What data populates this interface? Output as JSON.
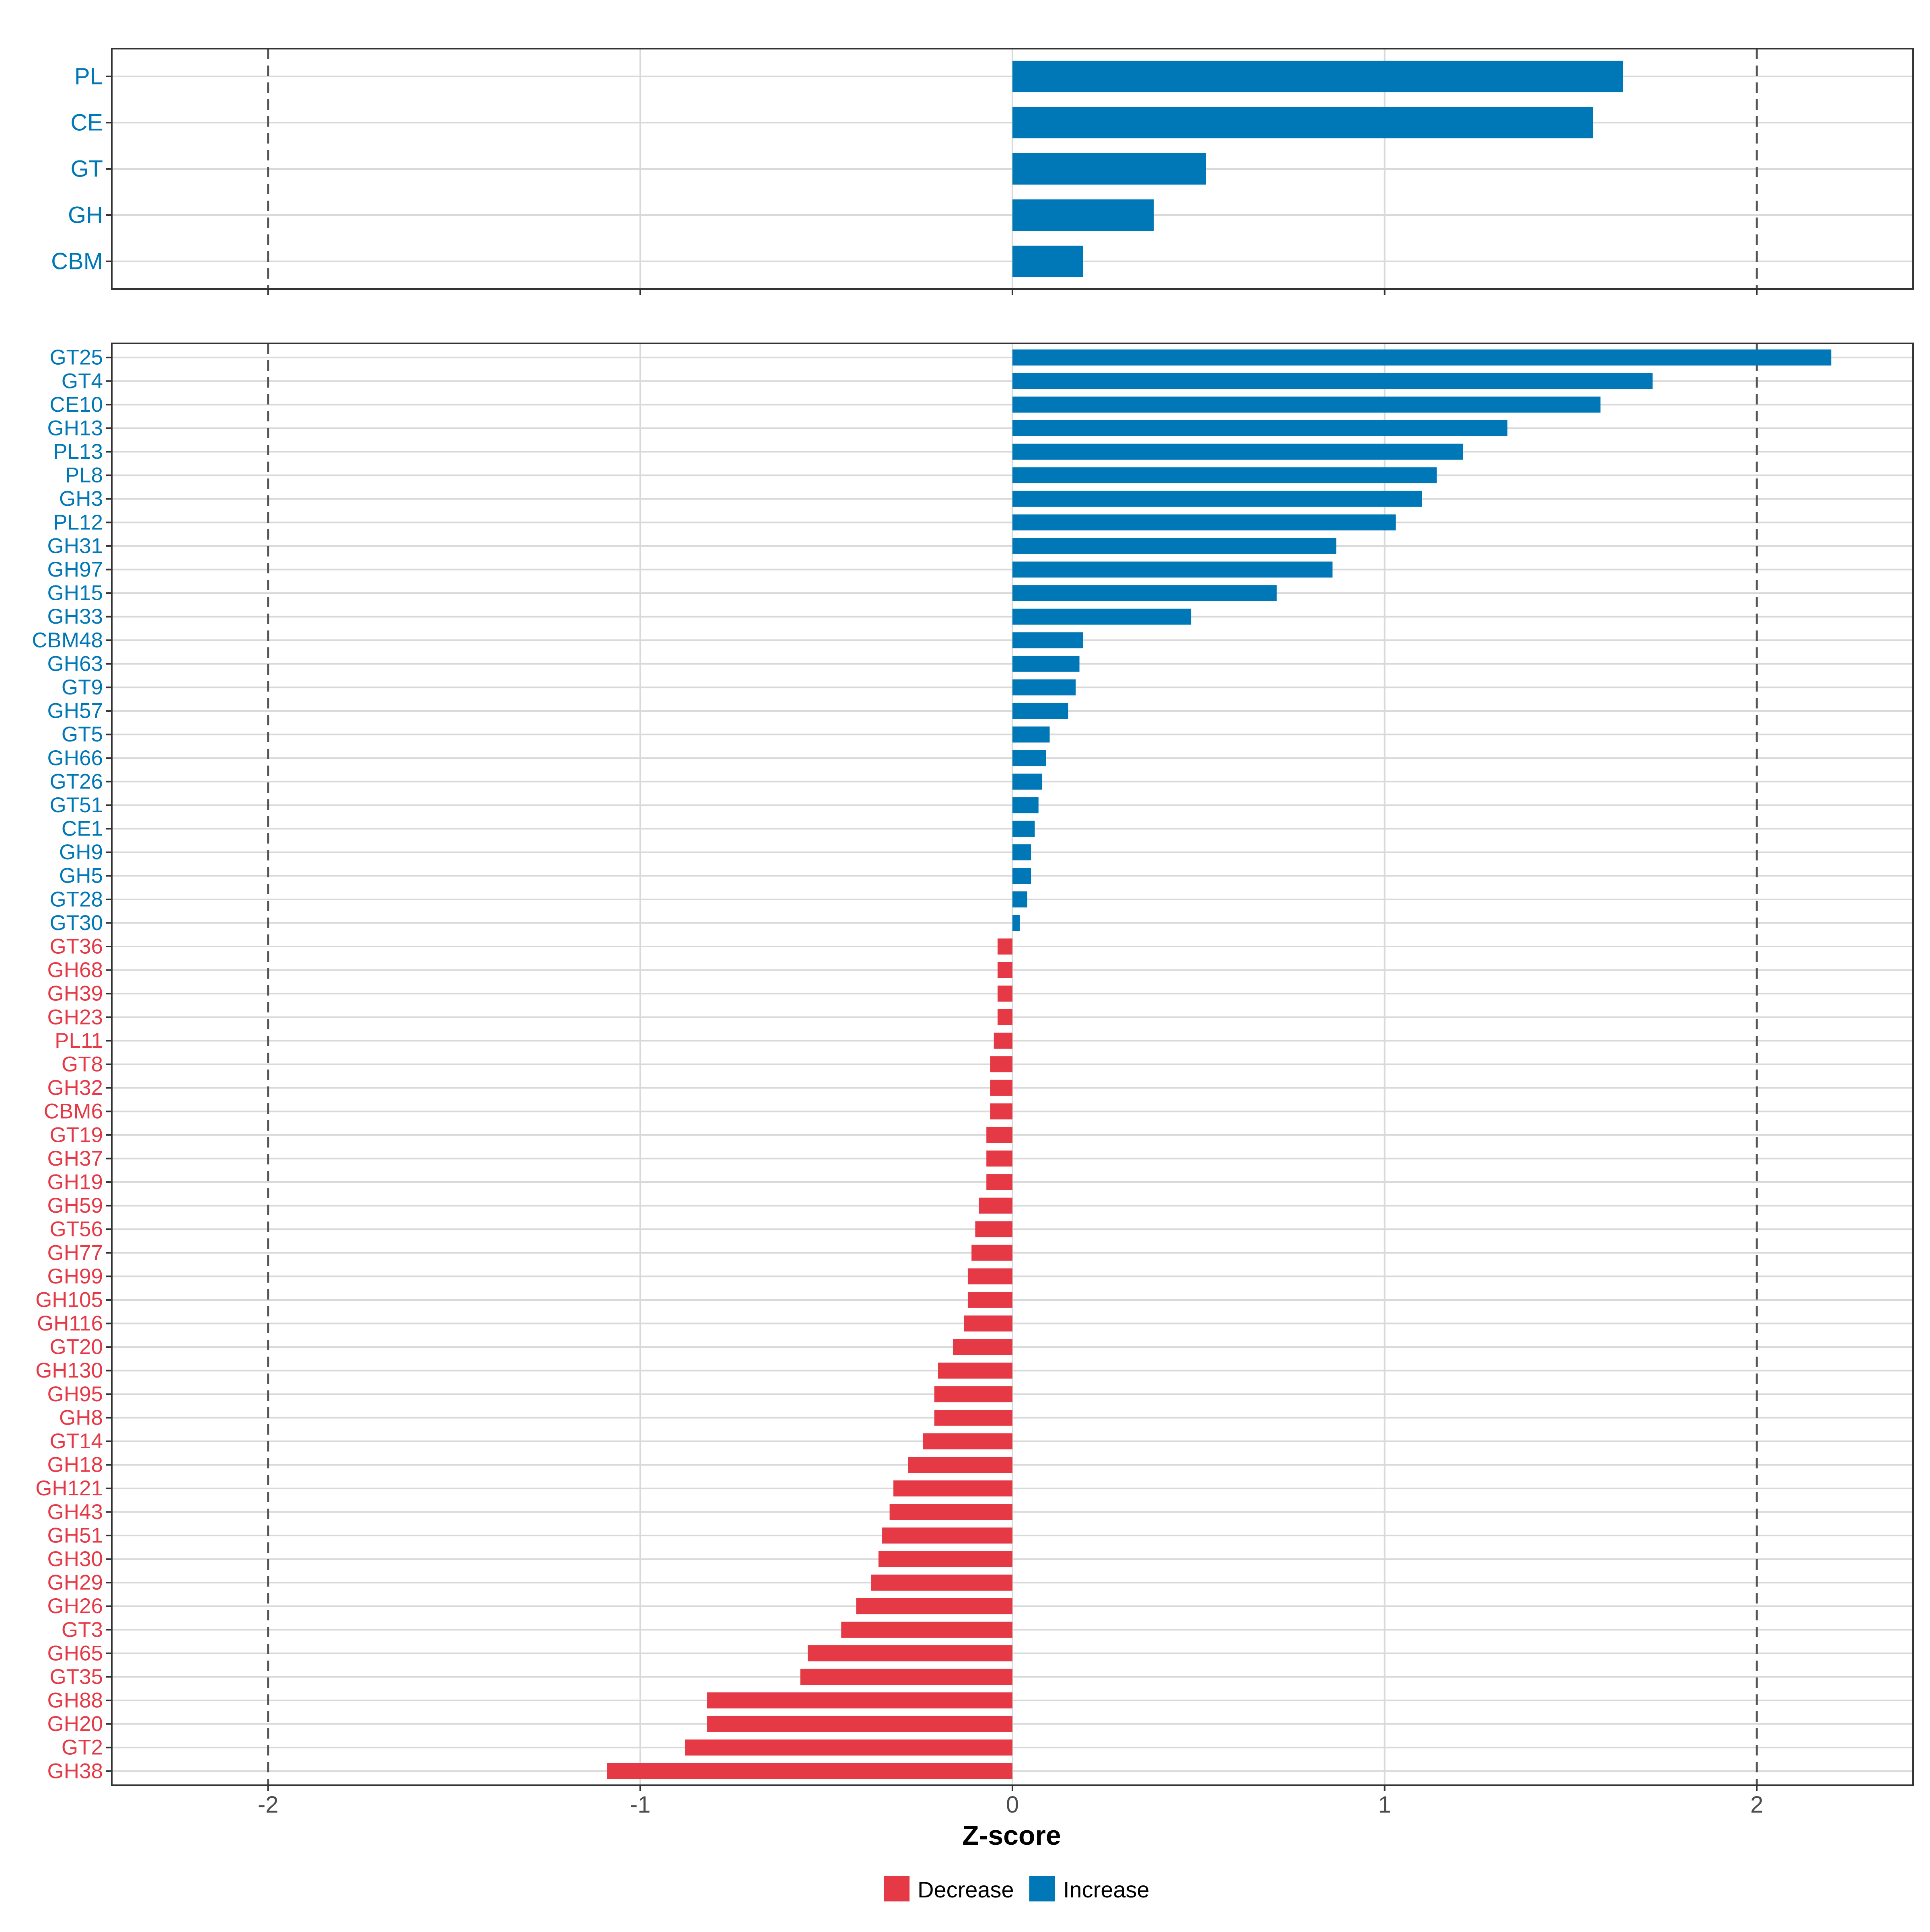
{
  "colors": {
    "increase": "#0077B6",
    "decrease": "#E63946",
    "grid": "#D9D9D9",
    "ref_line": "#555555",
    "axis_text": "#4D4D4D",
    "panel_border": "#333333"
  },
  "legend": {
    "items": [
      {
        "label": "Decrease",
        "color": "#E63946"
      },
      {
        "label": "Increase",
        "color": "#0077B6"
      }
    ]
  },
  "chart_data": [
    {
      "type": "bar",
      "orientation": "horizontal",
      "panel": "class-level",
      "categories": [
        "PL",
        "CE",
        "GT",
        "GH",
        "CBM"
      ],
      "values": [
        1.64,
        1.56,
        0.52,
        0.38,
        0.19
      ],
      "xlim": [
        -2.42,
        2.42
      ],
      "xticks": [
        -2,
        -1,
        0,
        1,
        2
      ],
      "reference_lines": [
        -2,
        2
      ],
      "grid": true
    },
    {
      "type": "bar",
      "orientation": "horizontal",
      "panel": "family-level",
      "categories": [
        "GT25",
        "GT4",
        "CE10",
        "GH13",
        "PL13",
        "PL8",
        "GH3",
        "PL12",
        "GH31",
        "GH97",
        "GH15",
        "GH33",
        "CBM48",
        "GH63",
        "GT9",
        "GH57",
        "GT5",
        "GH66",
        "GT26",
        "GT51",
        "CE1",
        "GH9",
        "GH5",
        "GT28",
        "GT30",
        "GT36",
        "GH68",
        "GH39",
        "GH23",
        "PL11",
        "GT8",
        "GH32",
        "CBM6",
        "GT19",
        "GH37",
        "GH19",
        "GH59",
        "GT56",
        "GH77",
        "GH99",
        "GH105",
        "GH116",
        "GT20",
        "GH130",
        "GH95",
        "GH8",
        "GT14",
        "GH18",
        "GH121",
        "GH43",
        "GH51",
        "GH30",
        "GH29",
        "GH26",
        "GT3",
        "GH65",
        "GT35",
        "GH88",
        "GH20",
        "GT2",
        "GH38"
      ],
      "values": [
        2.2,
        1.72,
        1.58,
        1.33,
        1.21,
        1.14,
        1.1,
        1.03,
        0.87,
        0.86,
        0.71,
        0.48,
        0.19,
        0.18,
        0.17,
        0.15,
        0.1,
        0.09,
        0.08,
        0.07,
        0.06,
        0.05,
        0.05,
        0.04,
        0.02,
        -0.04,
        -0.04,
        -0.04,
        -0.04,
        -0.05,
        -0.06,
        -0.06,
        -0.06,
        -0.07,
        -0.07,
        -0.07,
        -0.09,
        -0.1,
        -0.11,
        -0.12,
        -0.12,
        -0.13,
        -0.16,
        -0.2,
        -0.21,
        -0.21,
        -0.24,
        -0.28,
        -0.32,
        -0.33,
        -0.35,
        -0.36,
        -0.38,
        -0.42,
        -0.46,
        -0.55,
        -0.57,
        -0.82,
        -0.82,
        -0.88,
        -1.09
      ],
      "xlim": [
        -2.42,
        2.42
      ],
      "xticks": [
        -2,
        -1,
        0,
        1,
        2
      ],
      "xtick_labels": [
        "-2",
        "-1",
        "0",
        "1",
        "2"
      ],
      "xlabel": "Z-score",
      "reference_lines": [
        -2,
        2
      ],
      "grid": true
    }
  ]
}
